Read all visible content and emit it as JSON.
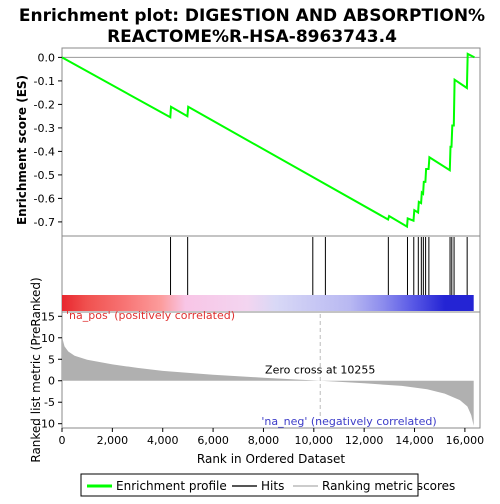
{
  "chart_data": {
    "type": "line",
    "title_lines": [
      "Enrichment plot: DIGESTION AND ABSORPTION%",
      "REACTOME%R-HSA-8963743.4"
    ],
    "es_panel": {
      "ylabel": "Enrichment score (ES)",
      "ylim": [
        -0.76,
        0.04
      ],
      "yticks": [
        "0.0",
        "-0.1",
        "-0.2",
        "-0.3",
        "-0.4",
        "-0.5",
        "-0.6",
        "-0.7"
      ],
      "ytick_values": [
        0.0,
        -0.1,
        -0.2,
        -0.3,
        -0.4,
        -0.5,
        -0.6,
        -0.7
      ],
      "series": [
        {
          "name": "Enrichment profile",
          "color": "#00ff00",
          "x": [
            0,
            4300,
            4330,
            4980,
            5010,
            12950,
            12990,
            13700,
            13730,
            13960,
            13990,
            14140,
            14170,
            14260,
            14290,
            14340,
            14370,
            14430,
            14460,
            14560,
            14590,
            15400,
            15430,
            15470,
            15500,
            15560,
            15590,
            16080,
            16110,
            16380
          ],
          "y": [
            0.0,
            -0.255,
            -0.21,
            -0.25,
            -0.21,
            -0.69,
            -0.675,
            -0.72,
            -0.685,
            -0.695,
            -0.65,
            -0.66,
            -0.615,
            -0.62,
            -0.575,
            -0.58,
            -0.53,
            -0.53,
            -0.475,
            -0.475,
            -0.425,
            -0.48,
            -0.38,
            -0.38,
            -0.29,
            -0.29,
            -0.095,
            -0.13,
            0.015,
            0.0
          ]
        }
      ]
    },
    "hits_panel": {
      "legend_label": "Hits",
      "hit_positions": [
        4310,
        4990,
        9960,
        10460,
        12960,
        13720,
        13970,
        14150,
        14270,
        14350,
        14440,
        14570,
        15410,
        15480,
        15570,
        16090
      ],
      "gradient_colors": [
        "#e8262e",
        "#f0514f",
        "#f77373",
        "#fc9c9c",
        "#f8c5e6",
        "#f3d5f0",
        "#d8d8f6",
        "#b8b8f2",
        "#8c8ced",
        "#5a5ae6",
        "#2424d4"
      ],
      "gradient_stops": [
        0,
        0.06,
        0.15,
        0.24,
        0.3,
        0.45,
        0.52,
        0.7,
        0.78,
        0.85,
        0.93
      ]
    },
    "rank_panel": {
      "ylabel": "Ranked list metric (PreRanked)",
      "xlabel": "Rank in Dataset",
      "xlabel_full": "Rank in Ordered Dataset",
      "xlim": [
        0,
        16600
      ],
      "xticks": [
        "0",
        "2,000",
        "4,000",
        "6,000",
        "8,000",
        "10,000",
        "12,000",
        "14,000",
        "16,000"
      ],
      "xtick_values": [
        0,
        2000,
        4000,
        6000,
        8000,
        10000,
        12000,
        14000,
        16000
      ],
      "ylim": [
        -11,
        16
      ],
      "yticks": [
        "15",
        "10",
        "5",
        "0",
        "-5",
        "-10"
      ],
      "ytick_values": [
        15,
        10,
        5,
        0,
        -5,
        -10
      ],
      "zero_cross_label": "Zero cross at 10255",
      "zero_cross_rank": 10255,
      "pos_label": "'na_pos' (positively correlated)",
      "neg_label": "'na_neg' (negatively correlated)",
      "metric_x": [
        0,
        30,
        100,
        250,
        500,
        1000,
        2000,
        3000,
        4000,
        6000,
        8000,
        10255,
        12000,
        13500,
        14500,
        15200,
        15800,
        16100,
        16250,
        16350
      ],
      "metric_y": [
        12,
        9.5,
        8,
        6.8,
        5.8,
        4.9,
        3.8,
        3.0,
        2.3,
        1.4,
        0.7,
        0.0,
        -0.6,
        -1.2,
        -2.0,
        -3.0,
        -4.5,
        -6.0,
        -8.0,
        -10.5
      ],
      "fill_color": "#b0b0b0"
    },
    "legend": {
      "items": [
        {
          "label": "Enrichment profile",
          "color": "#00ff00"
        },
        {
          "label": "Hits",
          "color": "#000000"
        },
        {
          "label": "Ranking metric scores",
          "color": "#b0b0b0"
        }
      ]
    },
    "grid": false
  }
}
